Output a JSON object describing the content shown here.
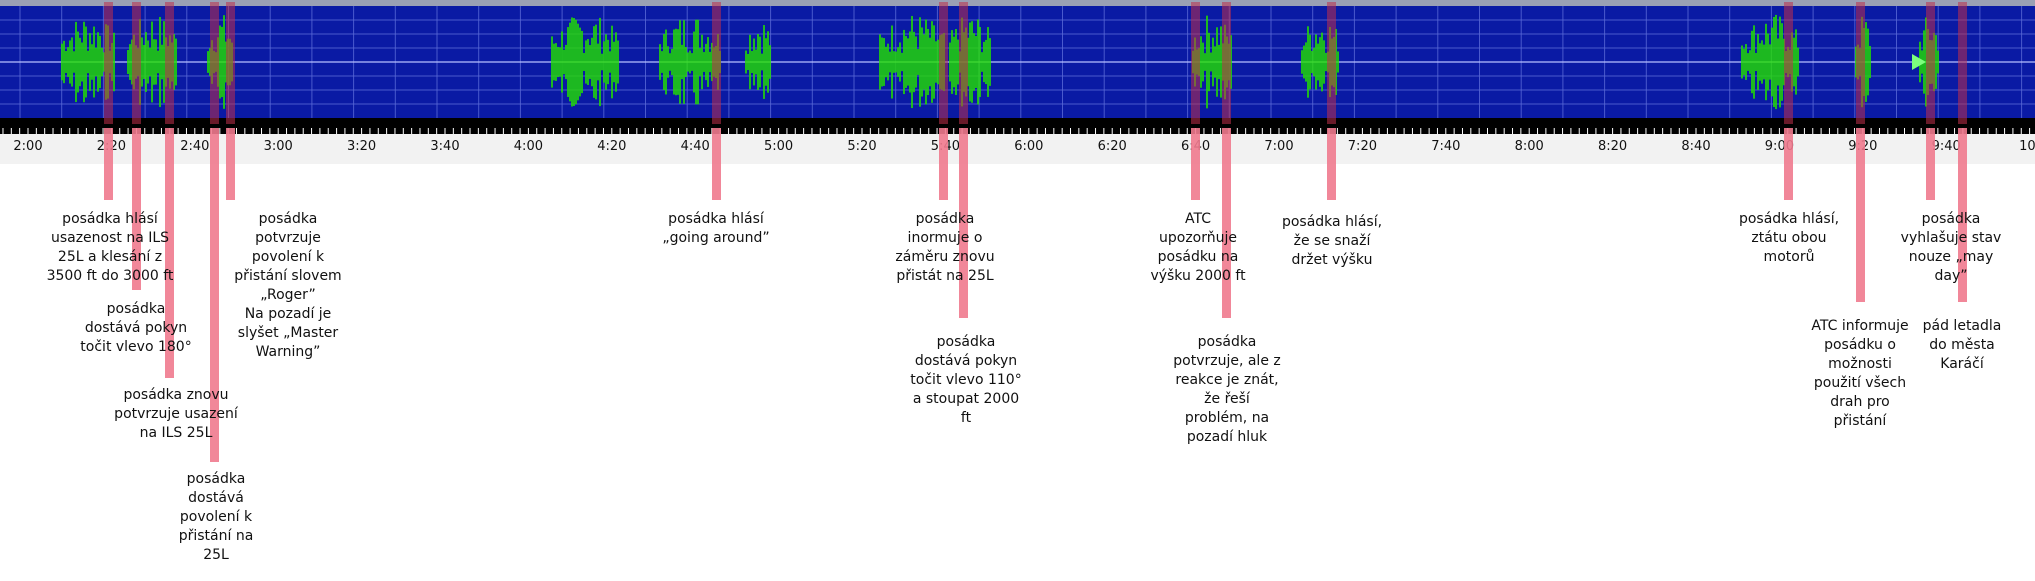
{
  "timeline": {
    "ticks": [
      "2:00",
      "2:20",
      "2:40",
      "3:00",
      "3:20",
      "3:40",
      "4:00",
      "4:20",
      "4:40",
      "5:00",
      "5:20",
      "5:40",
      "6:00",
      "6:20",
      "6:40",
      "7:00",
      "7:20",
      "7:40",
      "8:00",
      "8:20",
      "8:40",
      "9:00",
      "9:20",
      "9:40",
      "10:"
    ]
  },
  "waveform": {
    "background_color": "#0a1aa4",
    "signal_color": "#22e000",
    "grid_color": "#5a6ad8",
    "playhead_icon": "play-triangle-icon"
  },
  "annotations": [
    {
      "lines": [
        "posádka hlásí",
        "usazenost na ILS",
        "25L a klesání z",
        "3500 ft do 3000 ft"
      ]
    },
    {
      "lines": [
        "posádka",
        "dostává pokyn",
        "točit vlevo 180°"
      ]
    },
    {
      "lines": [
        "posádka znovu",
        "potvrzuje usazení",
        "na ILS 25L"
      ]
    },
    {
      "lines": [
        "posádka",
        "dostává",
        "povolení k",
        "přistání na",
        "25L"
      ]
    },
    {
      "lines": [
        "posádka",
        "potvrzuje",
        "povolení k",
        "přistání slovem",
        "„Roger”",
        "Na pozadí je",
        "slyšet „Master",
        "Warning”"
      ]
    },
    {
      "lines": [
        "posádka hlásí",
        "„going around”"
      ]
    },
    {
      "lines": [
        "posádka",
        "inormuje o",
        "záměru znovu",
        "přistát na 25L"
      ]
    },
    {
      "lines": [
        "posádka",
        "dostává pokyn",
        "točit vlevo 110°",
        "a stoupat 2000",
        "ft"
      ]
    },
    {
      "lines": [
        "ATC",
        "upozorňuje",
        "posádku na",
        "výšku 2000 ft"
      ]
    },
    {
      "lines": [
        "posádka",
        "potvrzuje, ale z",
        "reakce je znát,",
        "že řeší",
        "problém, na",
        "pozadí hluk"
      ]
    },
    {
      "lines": [
        "posádka hlásí,",
        "že se snaží",
        "držet výšku"
      ]
    },
    {
      "lines": [
        "posádka hlásí,",
        "ztátu obou",
        "motorů"
      ]
    },
    {
      "lines": [
        "ATC informuje",
        "posádku o",
        "možnosti",
        "použití všech",
        "drah pro",
        "přistání"
      ]
    },
    {
      "lines": [
        "posádka",
        "vyhlašuje stav",
        "nouze „may",
        "day”"
      ]
    },
    {
      "lines": [
        "pád letadla",
        "do města",
        "Karáčí"
      ]
    }
  ]
}
